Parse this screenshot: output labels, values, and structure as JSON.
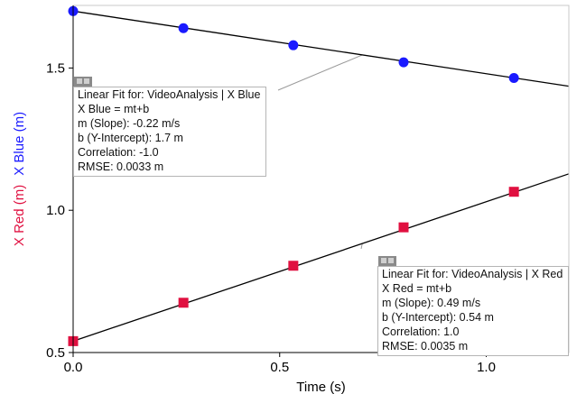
{
  "chart_data": {
    "type": "scatter",
    "xlabel": "Time (s)",
    "ylabel_parts": [
      {
        "text": "X Red (m)",
        "color": "#e01040"
      },
      {
        "text": "X Blue (m)",
        "color": "#1a1aff"
      }
    ],
    "xlim": [
      0,
      1.2
    ],
    "ylim": [
      0.5,
      1.72
    ],
    "x_ticks": [
      {
        "value": 0,
        "label": "0.0"
      },
      {
        "value": 0.5,
        "label": "0.5"
      },
      {
        "value": 1.0,
        "label": "1.0"
      }
    ],
    "y_ticks": [
      {
        "value": 0.5,
        "label": "0.5"
      },
      {
        "value": 1.0,
        "label": "1.0"
      },
      {
        "value": 1.5,
        "label": "1.5"
      }
    ],
    "grid": false,
    "series": [
      {
        "name": "X Blue",
        "color": "#1a1aff",
        "marker": "circle",
        "x": [
          0.0,
          0.267,
          0.533,
          0.8,
          1.067
        ],
        "y": [
          1.7,
          1.64,
          1.58,
          1.52,
          1.465
        ],
        "fit": {
          "slope": -0.22,
          "intercept": 1.7
        }
      },
      {
        "name": "X Red",
        "color": "#e01040",
        "marker": "square",
        "x": [
          0.0,
          0.267,
          0.533,
          0.8,
          1.067
        ],
        "y": [
          0.54,
          0.675,
          0.805,
          0.94,
          1.065
        ],
        "fit": {
          "slope": 0.49,
          "intercept": 0.54
        }
      }
    ],
    "annotations": [
      {
        "lines": [
          "Linear Fit for: VideoAnalysis | X Blue",
          "X Blue = mt+b",
          "m (Slope): -0.22 m/s",
          "b (Y-Intercept): 1.7 m",
          "Correlation: -1.0",
          "RMSE: 0.0033 m"
        ],
        "points_to": {
          "x": 0.7,
          "y": 1.546
        }
      },
      {
        "lines": [
          "Linear Fit for: VideoAnalysis | X Red",
          "X Red = mt+b",
          "m (Slope): 0.49 m/s",
          "b (Y-Intercept): 0.54 m",
          "Correlation: 1.0",
          "RMSE: 0.0035 m"
        ],
        "points_to": {
          "x": 0.7,
          "y": 0.883
        }
      }
    ]
  }
}
